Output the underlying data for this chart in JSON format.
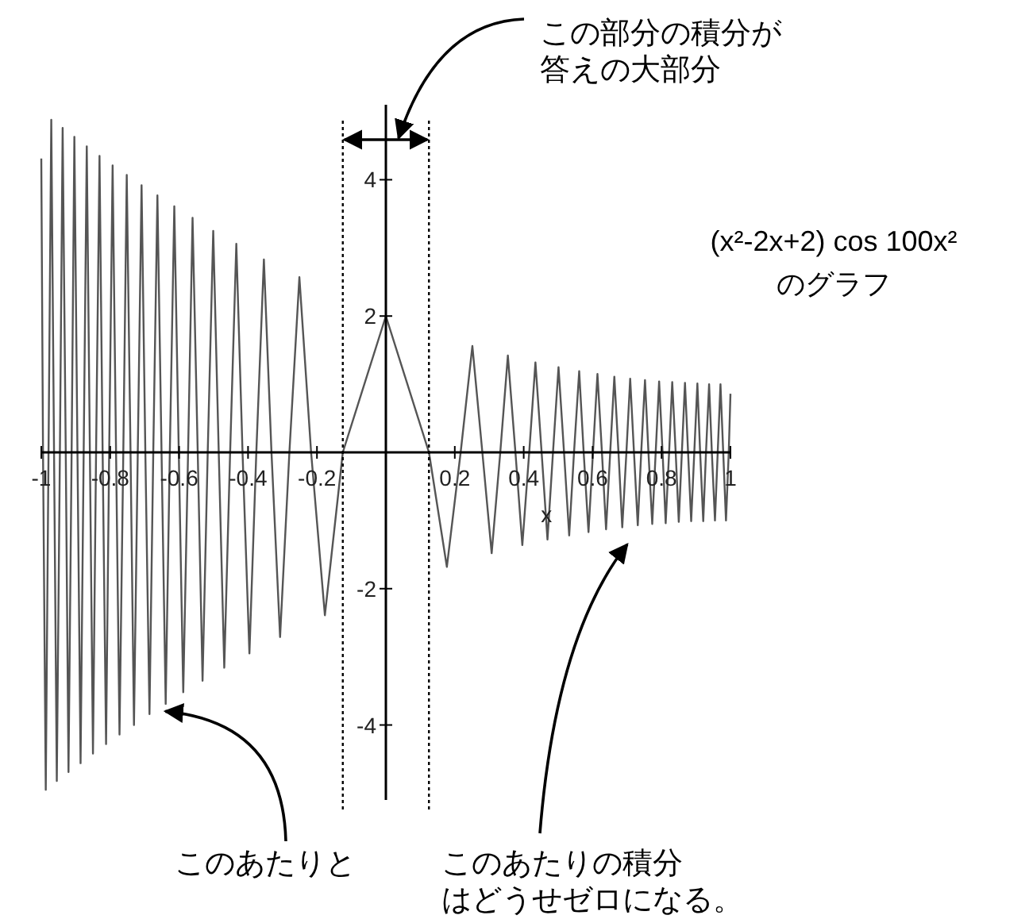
{
  "chart_data": {
    "type": "line",
    "title": "(x²-2x+2) cos 100x²\nのグラフ",
    "xlabel": "x",
    "xlim": [
      -1,
      1
    ],
    "ylim": [
      -5.1,
      5.1
    ],
    "xticks": [
      -1,
      -0.8,
      -0.6,
      -0.4,
      -0.2,
      0.2,
      0.4,
      0.6,
      0.8,
      1
    ],
    "yticks": [
      -4,
      -2,
      2,
      4
    ],
    "grid": false,
    "marker": "none",
    "line_style": "solid",
    "ref_lines": [
      {
        "axis": "x",
        "value": -0.125,
        "color": "#000000",
        "line_style": "dotted"
      },
      {
        "axis": "x",
        "value": 0.125,
        "color": "#000000",
        "line_style": "dotted"
      }
    ],
    "annotations": [
      "この部分の積分が答えの大部分",
      {
        "text": "このあたりと",
        "x": -0.64,
        "y": -3.8
      },
      "このあたりの積分はどうせゼロになる。"
    ],
    "series": [
      {
        "color": "#555555",
        "x": [
          -1,
          -0.995,
          -0.987,
          -0.979,
          -0.971,
          -0.963,
          -0.955,
          -0.946,
          -0.938,
          -0.929,
          -0.921,
          -0.912,
          -0.904,
          -0.895,
          -0.886,
          -0.877,
          -0.868,
          -0.859,
          -0.85,
          -0.841,
          -0.831,
          -0.822,
          -0.812,
          -0.803,
          -0.793,
          -0.783,
          -0.773,
          -0.762,
          -0.752,
          -0.741,
          -0.731,
          -0.72,
          -0.709,
          -0.698,
          -0.686,
          -0.675,
          -0.663,
          -0.651,
          -0.639,
          -0.627,
          -0.614,
          -0.601,
          -0.588,
          -0.574,
          -0.561,
          -0.546,
          -0.532,
          -0.517,
          -0.501,
          -0.485,
          -0.469,
          -0.452,
          -0.434,
          -0.416,
          -0.396,
          -0.376,
          -0.354,
          -0.332,
          -0.307,
          -0.28,
          -0.251,
          -0.217,
          -0.177,
          -0.125,
          0,
          0.125,
          0.177,
          0.217,
          0.251,
          0.28,
          0.307,
          0.332,
          0.354,
          0.376,
          0.396,
          0.416,
          0.434,
          0.452,
          0.469,
          0.485,
          0.501,
          0.517,
          0.532,
          0.546,
          0.561,
          0.574,
          0.588,
          0.601,
          0.614,
          0.627,
          0.639,
          0.651,
          0.663,
          0.675,
          0.686,
          0.698,
          0.709,
          0.72,
          0.731,
          0.741,
          0.752,
          0.762,
          0.773,
          0.783,
          0.793,
          0.803,
          0.812,
          0.822,
          0.831,
          0.841,
          0.85,
          0.859,
          0.868,
          0.877,
          0.886,
          0.895,
          0.904,
          0.912,
          0.921,
          0.929,
          0.938,
          0.946,
          0.955,
          0.963,
          0.971,
          0.979,
          0.987,
          0.995,
          1
        ],
        "values": [
          4.31,
          0,
          -4.95,
          0,
          4.88,
          0,
          -4.82,
          0,
          4.76,
          0,
          -4.69,
          0,
          4.63,
          0,
          -4.56,
          0,
          4.49,
          0,
          -4.42,
          0,
          4.35,
          0,
          -4.28,
          0,
          4.21,
          0,
          -4.14,
          0,
          4.07,
          0,
          -4.0,
          0,
          3.92,
          0,
          -3.84,
          0,
          3.77,
          0,
          -3.69,
          0,
          3.61,
          0,
          -3.52,
          0,
          3.44,
          0,
          -3.35,
          0,
          3.25,
          0,
          -3.16,
          0,
          3.06,
          0,
          -2.95,
          0,
          2.83,
          0,
          -2.71,
          0,
          2.57,
          0,
          -2.39,
          0,
          2,
          0,
          -1.68,
          0,
          1.56,
          0,
          -1.48,
          0,
          1.42,
          0,
          -1.36,
          0,
          1.32,
          0,
          -1.28,
          0,
          1.25,
          0,
          -1.22,
          0,
          1.19,
          0,
          -1.17,
          0,
          1.15,
          0,
          -1.13,
          0,
          1.11,
          0,
          -1.1,
          0,
          1.08,
          0,
          -1.07,
          0,
          1.06,
          0,
          -1.05,
          0,
          1.04,
          0,
          -1.04,
          0,
          1.03,
          0,
          -1.02,
          0,
          1.02,
          0,
          -1.01,
          0,
          1.01,
          0,
          -1.01,
          0,
          1.0,
          0,
          -1.0,
          0,
          1.0,
          0,
          -1.0,
          0,
          0.86
        ]
      }
    ]
  }
}
